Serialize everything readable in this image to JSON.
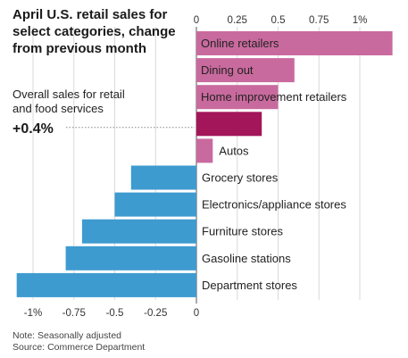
{
  "chart_data": {
    "type": "bar",
    "orientation": "horizontal",
    "title_lines": [
      "April U.S. retail sales for",
      "select categories, change",
      "from previous month"
    ],
    "xlim": [
      -1.1,
      1.2
    ],
    "top_ticks": [
      "0",
      "0.25",
      "0.5",
      "0.75",
      "1%"
    ],
    "top_tick_values": [
      0,
      0.25,
      0.5,
      0.75,
      1.0
    ],
    "bottom_ticks": [
      "-1%",
      "-0.75",
      "-0.5",
      "-0.25",
      "0"
    ],
    "bottom_tick_values": [
      -1.0,
      -0.75,
      -0.5,
      -0.25,
      0
    ],
    "grid": true,
    "categories": [
      "Online retailers",
      "Dining out",
      "Home improvement retailers",
      "Overall sales for retail and food services",
      "Autos",
      "Grocery stores",
      "Electronics/appliance stores",
      "Furniture stores",
      "Gasoline stations",
      "Department stores"
    ],
    "values": [
      1.2,
      0.6,
      0.5,
      0.4,
      0.1,
      -0.4,
      -0.5,
      -0.7,
      -0.8,
      -1.1
    ],
    "colors": {
      "positive": "#c96a9e",
      "overall": "#a3165a",
      "negative": "#3e9bd0"
    },
    "overall": {
      "label_lines": [
        "Overall sales for retail",
        "and food services"
      ],
      "value_text": "+0.4%"
    },
    "notes": [
      "Note: Seasonally adjusted",
      "Source: Commerce Department"
    ]
  }
}
